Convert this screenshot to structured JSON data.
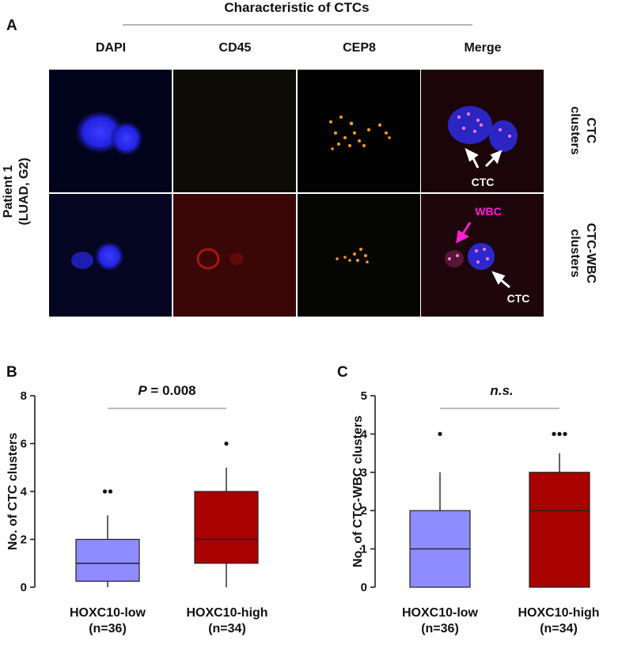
{
  "panel_a": {
    "letter": "A",
    "title": "Characteristic of CTCs",
    "columns": [
      "DAPI",
      "CD45",
      "CEP8",
      "Merge"
    ],
    "patient_label_line1": "Patient 1",
    "patient_label_line2": "(LUAD, G2)",
    "row_labels": [
      {
        "line1": "CTC",
        "line2": "clusters"
      },
      {
        "line1": "CTC-WBC",
        "line2": "clusters"
      }
    ],
    "annotations": {
      "ctc_top": "CTC",
      "wbc": "WBC",
      "ctc_bottom": "CTC"
    },
    "colors": {
      "dapi": "#2a2cff",
      "cd45": "#c0271f",
      "cep8": "#ff9a1a",
      "wbc_arrow": "#ff1ed2"
    }
  },
  "chart_data": [
    {
      "type": "box",
      "panel": "B",
      "ylabel": "No. of CTC clusters",
      "ylim": [
        0,
        8
      ],
      "yticks": [
        "0",
        "2",
        "4",
        "6",
        "8"
      ],
      "categories": [
        {
          "line1": "HOXC10-low",
          "line2": "(n=36)"
        },
        {
          "line1": "HOXC10-high",
          "line2": "(n=34)"
        }
      ],
      "significance_prefix": "P",
      "significance_value": " = 0.008",
      "boxes": [
        {
          "color": "#8e8cff",
          "whisker_low": 0,
          "q1": 0.25,
          "median": 1,
          "q3": 2,
          "whisker_high": 3,
          "outliers": [
            4,
            4
          ]
        },
        {
          "color": "#a90000",
          "whisker_low": 0,
          "q1": 1,
          "median": 2,
          "q3": 4,
          "whisker_high": 5,
          "outliers": [
            6
          ]
        }
      ]
    },
    {
      "type": "box",
      "panel": "C",
      "ylabel": "No. of CTC-WBC clusters",
      "ylim": [
        0,
        5
      ],
      "yticks": [
        "0",
        "1",
        "2",
        "3",
        "4",
        "5"
      ],
      "categories": [
        {
          "line1": "HOXC10-low",
          "line2": "(n=36)"
        },
        {
          "line1": "HOXC10-high",
          "line2": "(n=34)"
        }
      ],
      "significance_text": "n.s.",
      "boxes": [
        {
          "color": "#8e8cff",
          "whisker_low": 0,
          "q1": 0,
          "median": 1,
          "q3": 2,
          "whisker_high": 3,
          "outliers": [
            4
          ]
        },
        {
          "color": "#a90000",
          "whisker_low": 0,
          "q1": 0,
          "median": 2,
          "q3": 3,
          "whisker_high": 3.5,
          "outliers": [
            4,
            4,
            4
          ]
        }
      ]
    }
  ]
}
